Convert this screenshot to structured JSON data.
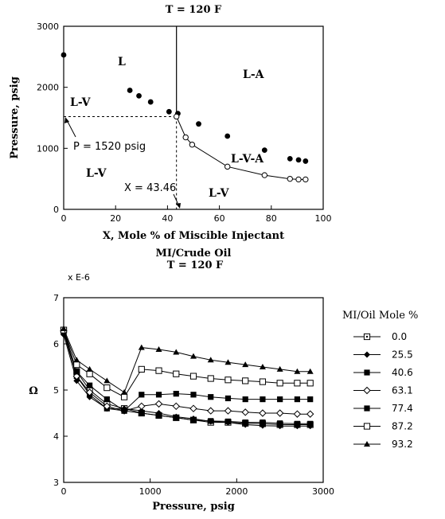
{
  "chart_data": [
    {
      "type": "scatter",
      "title": "T = 120 F",
      "xlabel": "X, Mole % of Miscible Injectant",
      "ylabel": "Pressure, psig",
      "xlim": [
        0,
        100
      ],
      "ylim": [
        0,
        3000
      ],
      "xticks": [
        "0",
        "20",
        "40",
        "60",
        "80",
        "100"
      ],
      "yticks": [
        "0",
        "1000",
        "2000",
        "3000"
      ],
      "region_labels": [
        "L",
        "L-A",
        "L-V",
        "L-V",
        "L-V-A",
        "L-V"
      ],
      "annotations": [
        "P = 1520 psig",
        "X = 43.46"
      ],
      "critical_point": {
        "x": 43.46,
        "y": 1520
      },
      "vertical_boundary_x": 43.46,
      "series": [
        {
          "marker": "filled-circle",
          "x": [
            0,
            25.5,
            29,
            33.5,
            40.6,
            44,
            52,
            63.1,
            77.4,
            87.2,
            90.5,
            93.2
          ],
          "y": [
            2530,
            1950,
            1860,
            1760,
            1600,
            1570,
            1400,
            1200,
            970,
            830,
            810,
            790
          ]
        },
        {
          "marker": "open-circle",
          "x": [
            43.46,
            47,
            49.5,
            63.1,
            77.4,
            87.2,
            90.5,
            93.2
          ],
          "y": [
            1520,
            1180,
            1060,
            700,
            560,
            500,
            490,
            490
          ]
        }
      ]
    },
    {
      "type": "line",
      "title": "MI/Crude Oil",
      "subtitle": "T = 120 F",
      "scale_note": "x E-6",
      "xlabel": "Pressure, psig",
      "ylabel": "Ω",
      "xlim": [
        0,
        3000
      ],
      "ylim": [
        3,
        7
      ],
      "xticks": [
        "0",
        "1000",
        "2000",
        "3000"
      ],
      "yticks": [
        "3",
        "4",
        "5",
        "6",
        "7"
      ],
      "legend_title": "MI/Oil Mole %",
      "legend_position": "right",
      "series": [
        {
          "name": "0.0",
          "marker": "open-square-dot",
          "x": [
            0,
            150,
            300,
            500,
            700,
            900,
            1100,
            1300,
            1500,
            1700,
            1900,
            2100,
            2300,
            2500,
            2700,
            2850
          ],
          "y": [
            6.3,
            5.4,
            5.0,
            4.7,
            4.6,
            4.5,
            4.45,
            4.4,
            4.35,
            4.3,
            4.3,
            4.28,
            4.27,
            4.25,
            4.25,
            4.25
          ]
        },
        {
          "name": "25.5",
          "marker": "filled-diamond",
          "x": [
            0,
            150,
            300,
            500,
            700,
            900,
            1100,
            1300,
            1500,
            1700,
            1900,
            2100,
            2300,
            2500,
            2700,
            2850
          ],
          "y": [
            6.2,
            5.2,
            4.85,
            4.6,
            4.6,
            4.55,
            4.5,
            4.42,
            4.38,
            4.32,
            4.3,
            4.25,
            4.23,
            4.22,
            4.22,
            4.22
          ]
        },
        {
          "name": "40.6",
          "marker": "filled-square",
          "x": [
            0,
            150,
            300,
            500,
            700,
            900,
            1100,
            1300,
            1500,
            1700,
            1900,
            2100,
            2300,
            2500,
            2700,
            2850
          ],
          "y": [
            6.25,
            5.3,
            4.9,
            4.6,
            4.55,
            4.5,
            4.45,
            4.4,
            4.35,
            4.33,
            4.32,
            4.3,
            4.3,
            4.28,
            4.27,
            4.27
          ]
        },
        {
          "name": "63.1",
          "marker": "open-diamond",
          "x": [
            0,
            150,
            300,
            500,
            700,
            900,
            1100,
            1300,
            1500,
            1700,
            1900,
            2100,
            2300,
            2500,
            2700,
            2850
          ],
          "y": [
            6.28,
            5.3,
            4.95,
            4.65,
            4.55,
            4.65,
            4.7,
            4.65,
            4.6,
            4.55,
            4.55,
            4.52,
            4.5,
            4.5,
            4.48,
            4.48
          ]
        },
        {
          "name": "77.4",
          "marker": "filled-square",
          "x": [
            0,
            150,
            300,
            500,
            700,
            900,
            1100,
            1300,
            1500,
            1700,
            1900,
            2100,
            2300,
            2500,
            2700,
            2850
          ],
          "y": [
            6.3,
            5.4,
            5.1,
            4.8,
            4.55,
            4.9,
            4.9,
            4.92,
            4.9,
            4.85,
            4.82,
            4.8,
            4.8,
            4.8,
            4.8,
            4.8
          ]
        },
        {
          "name": "87.2",
          "marker": "open-square",
          "x": [
            0,
            150,
            300,
            500,
            700,
            900,
            1100,
            1300,
            1500,
            1700,
            1900,
            2100,
            2300,
            2500,
            2700,
            2850
          ],
          "y": [
            6.3,
            5.55,
            5.35,
            5.05,
            4.85,
            5.45,
            5.42,
            5.35,
            5.3,
            5.25,
            5.22,
            5.2,
            5.18,
            5.15,
            5.15,
            5.15
          ]
        },
        {
          "name": "93.2",
          "marker": "filled-triangle",
          "x": [
            0,
            150,
            300,
            500,
            700,
            900,
            1100,
            1300,
            1500,
            1700,
            1900,
            2100,
            2300,
            2500,
            2700,
            2850
          ],
          "y": [
            6.33,
            5.65,
            5.45,
            5.2,
            4.95,
            5.92,
            5.88,
            5.82,
            5.73,
            5.65,
            5.6,
            5.55,
            5.5,
            5.45,
            5.4,
            5.4
          ]
        }
      ]
    }
  ]
}
